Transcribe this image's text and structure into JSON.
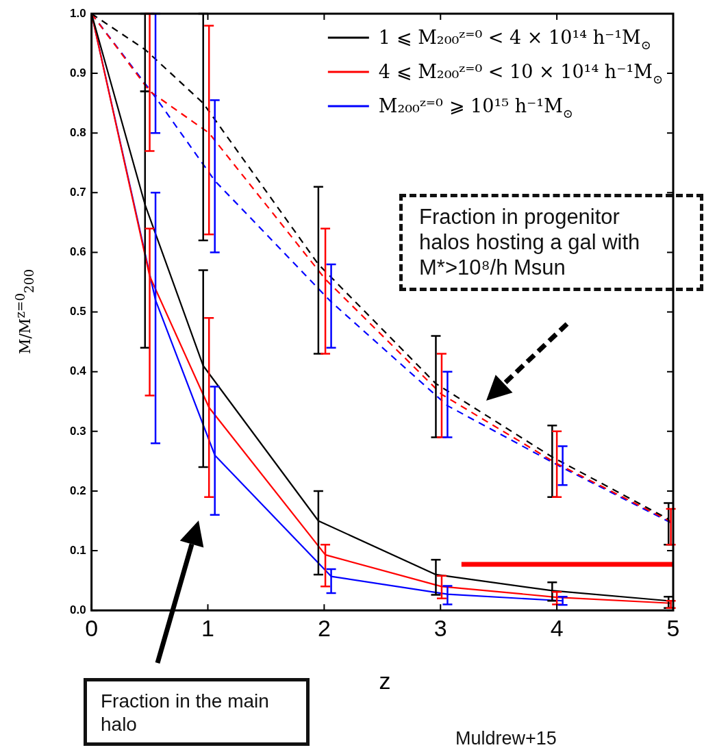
{
  "chart_data": {
    "type": "line",
    "xlabel": "z",
    "ylabel": "M/M$^{z=0}$$_{200}$",
    "xlim": [
      0,
      5
    ],
    "xticks": [
      0,
      1,
      2,
      3,
      4,
      5
    ],
    "ylim": [
      0,
      1
    ],
    "yticks": [
      {
        "value": 0,
        "label": "0.0"
      },
      0.1,
      0.2,
      0.3,
      0.4,
      0.5,
      0.6,
      0.7,
      0.8,
      0.9,
      {
        "value": 1,
        "label": "1.0"
      }
    ],
    "legend": "top right",
    "grid": false,
    "series": [
      {
        "name": "1 ⩽ M₂₀₀ᶻ⁼⁰ < 4 × 10¹⁴ h⁻¹M$_{⊙}$",
        "color": "#000000",
        "line_style": "solid",
        "x": [
          0,
          0.46,
          0.96,
          1.95,
          2.96,
          3.96,
          4.96
        ],
        "values": [
          1,
          0.68,
          0.41,
          0.15,
          0.06,
          0.033,
          0.016
        ],
        "errors": [
          null,
          [
            0.44,
            0.87
          ],
          [
            0.24,
            0.57
          ],
          [
            0.06,
            0.2
          ],
          [
            0.026,
            0.085
          ],
          [
            0.016,
            0.047
          ],
          [
            0.004,
            0.023
          ]
        ]
      },
      {
        "name": "4 ⩽ M₂₀₀ᶻ⁼⁰ < 10 × 10¹⁴ h⁻¹M$_{⊙}$",
        "color": "#ff0000",
        "line_style": "solid",
        "x": [
          0,
          0.5,
          1.01,
          2.01,
          3.01,
          4.0,
          4.98
        ],
        "values": [
          1,
          0.56,
          0.34,
          0.093,
          0.04,
          0.022,
          0.012
        ],
        "errors": [
          null,
          [
            0.36,
            0.64
          ],
          [
            0.19,
            0.49
          ],
          [
            0.04,
            0.11
          ],
          [
            0.02,
            0.058
          ],
          [
            0.01,
            0.031
          ],
          [
            0.004,
            0.016
          ]
        ]
      },
      {
        "name": "M₂₀₀ᶻ⁼⁰ ⩾ 10¹⁵ h⁻¹M$_{⊙}$",
        "color": "#0000ff",
        "line_style": "solid",
        "x": [
          0,
          0.55,
          1.06,
          2.06,
          3.06,
          4.05
        ],
        "values": [
          1,
          0.52,
          0.26,
          0.057,
          0.027,
          0.016
        ],
        "errors": [
          null,
          [
            0.28,
            0.7
          ],
          [
            0.16,
            0.375
          ],
          [
            0.029,
            0.069
          ],
          [
            0.01,
            0.041
          ],
          [
            0.009,
            0.023
          ]
        ]
      },
      {
        "color": "#000000",
        "line_style": "dashed",
        "x": [
          0,
          0.46,
          0.96,
          1.95,
          2.96,
          3.96,
          4.96
        ],
        "values": [
          1,
          0.94,
          0.85,
          0.58,
          0.38,
          0.257,
          0.153
        ],
        "errors": [
          null,
          [
            0.87,
            1.0
          ],
          [
            0.62,
            1.0
          ],
          [
            0.43,
            0.71
          ],
          [
            0.29,
            0.46
          ],
          [
            0.19,
            0.31
          ],
          [
            0.11,
            0.18
          ]
        ]
      },
      {
        "color": "#ff0000",
        "line_style": "dashed",
        "x": [
          0,
          0.5,
          1.01,
          2.01,
          3.01,
          4.0,
          4.98
        ],
        "values": [
          1,
          0.87,
          0.8,
          0.555,
          0.362,
          0.246,
          0.149
        ],
        "errors": [
          null,
          [
            0.77,
            1.0
          ],
          [
            0.63,
            0.98
          ],
          [
            0.43,
            0.64
          ],
          [
            0.29,
            0.43
          ],
          [
            0.19,
            0.3
          ],
          [
            0.11,
            0.17
          ]
        ]
      },
      {
        "color": "#0000ff",
        "line_style": "dashed",
        "x": [
          0,
          0.55,
          1.06,
          2.06,
          3.06,
          4.05,
          5.0
        ],
        "values": [
          1,
          0.86,
          0.72,
          0.517,
          0.343,
          0.239,
          0.145
        ],
        "errors": [
          null,
          [
            0.8,
            1.0
          ],
          [
            0.6,
            0.855
          ],
          [
            0.44,
            0.58
          ],
          [
            0.29,
            0.4
          ],
          [
            0.21,
            0.275
          ],
          null
        ]
      },
      {
        "color": "#ff0000",
        "line_style": "solid",
        "x": [
          3.18,
          5
        ],
        "values": [
          0.077,
          0.077
        ]
      }
    ],
    "annotations": [
      "Fraction in progenitor halos hosting a gal with M*>10⁸/h Msun",
      "Fraction in the main halo",
      "Muldrew+15"
    ]
  }
}
